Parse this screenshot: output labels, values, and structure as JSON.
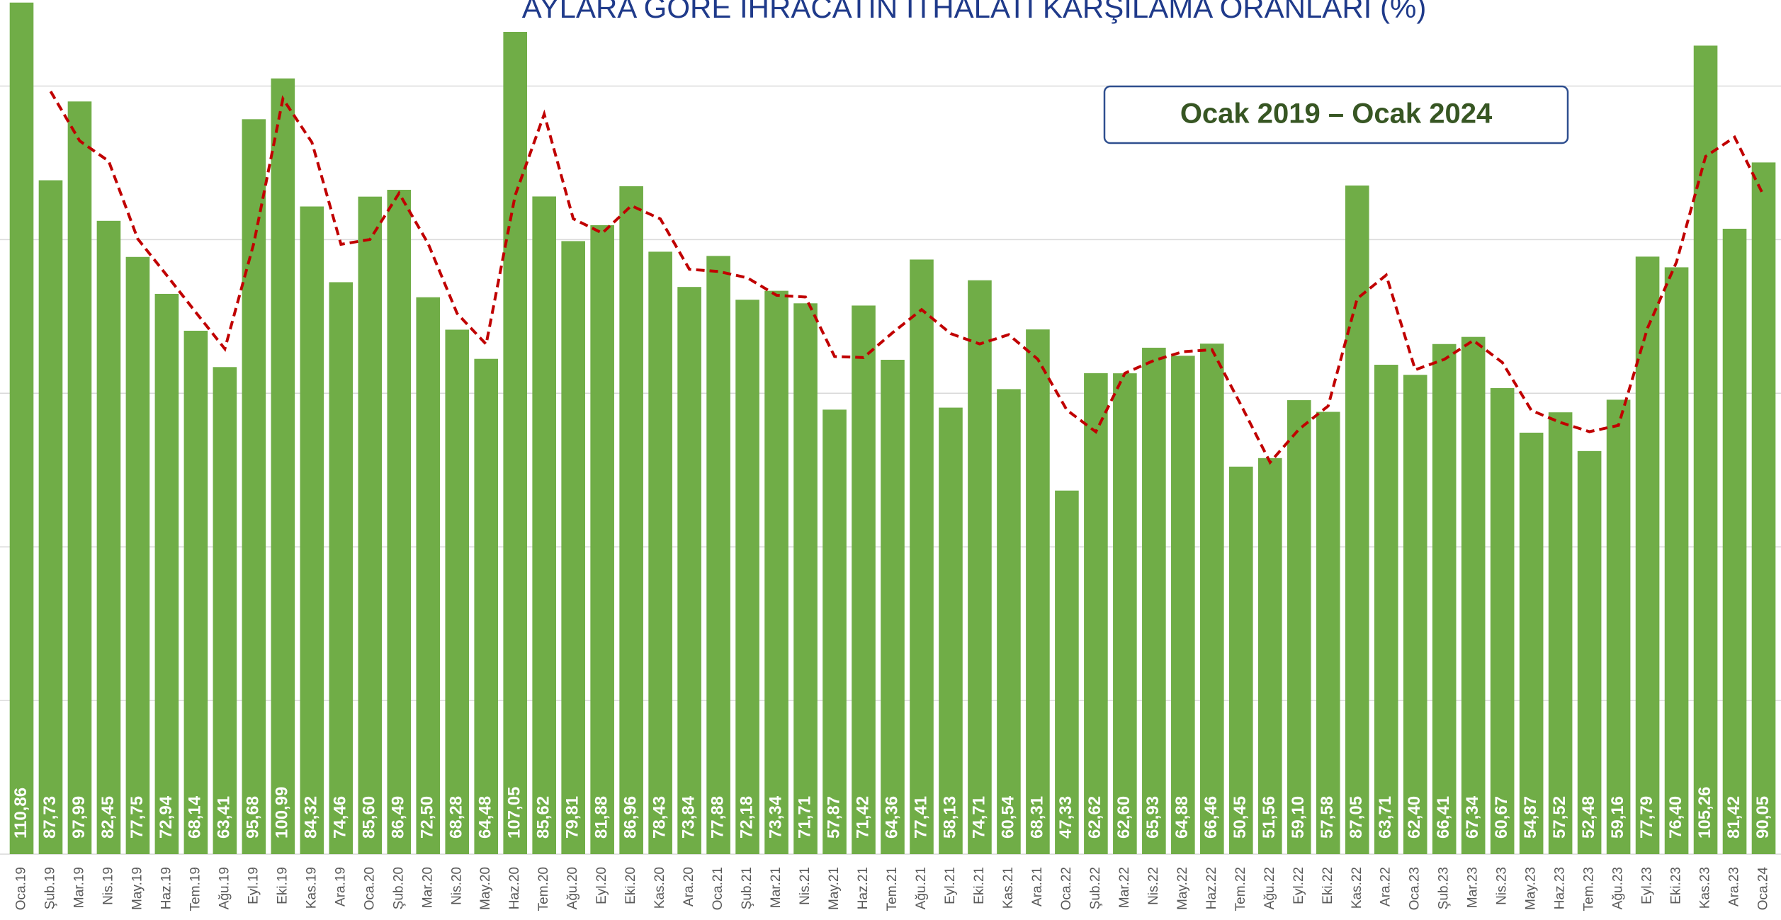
{
  "chart_data": {
    "type": "bar",
    "title": "AYLARA GÖRE İHRACATIN İTHALATI KARŞILAMA ORANLARI (%)",
    "annotation": "Ocak 2019 – Ocak 2024",
    "categories": [
      "Oca.19",
      "Şub.19",
      "Mar.19",
      "Nis.19",
      "May.19",
      "Haz.19",
      "Tem.19",
      "Ağu.19",
      "Eyl.19",
      "Eki.19",
      "Kas.19",
      "Ara.19",
      "Oca.20",
      "Şub.20",
      "Mar.20",
      "Nis.20",
      "May.20",
      "Haz.20",
      "Tem.20",
      "Ağu.20",
      "Eyl.20",
      "Eki.20",
      "Kas.20",
      "Ara.20",
      "Oca.21",
      "Şub.21",
      "Mar.21",
      "Nis.21",
      "May.21",
      "Haz.21",
      "Tem.21",
      "Ağu.21",
      "Eyl.21",
      "Eki.21",
      "Kas.21",
      "Ara.21",
      "Oca.22",
      "Şub.22",
      "Mar.22",
      "Nis.22",
      "May.22",
      "Haz.22",
      "Tem.22",
      "Ağu.22",
      "Eyl.22",
      "Eki.22",
      "Kas.22",
      "Ara.22",
      "Oca.23",
      "Şub.23",
      "Mar.23",
      "Nis.23",
      "May.23",
      "Haz.23",
      "Tem.23",
      "Ağu.23",
      "Eyl.23",
      "Eki.23",
      "Kas.23",
      "Ara.23",
      "Oca.24"
    ],
    "values": [
      110.86,
      87.73,
      97.99,
      82.45,
      77.75,
      72.94,
      68.14,
      63.41,
      95.68,
      100.99,
      84.32,
      74.46,
      85.6,
      86.49,
      72.5,
      68.28,
      64.48,
      107.05,
      85.62,
      79.81,
      81.88,
      86.96,
      78.43,
      73.84,
      77.88,
      72.18,
      73.34,
      71.71,
      57.87,
      71.42,
      64.36,
      77.41,
      58.13,
      74.71,
      60.54,
      68.31,
      47.33,
      62.62,
      62.6,
      65.93,
      64.88,
      66.46,
      50.45,
      51.56,
      59.1,
      57.58,
      87.05,
      63.71,
      62.4,
      66.41,
      67.34,
      60.67,
      54.87,
      57.52,
      52.48,
      59.16,
      77.79,
      76.4,
      105.26,
      81.42,
      90.05
    ],
    "value_labels": [
      "110,86",
      "87,73",
      "97,99",
      "82,45",
      "77,75",
      "72,94",
      "68,14",
      "63,41",
      "95,68",
      "100,99",
      "84,32",
      "74,46",
      "85,60",
      "86,49",
      "72,50",
      "68,28",
      "64,48",
      "107,05",
      "85,62",
      "79,81",
      "81,88",
      "86,96",
      "78,43",
      "73,84",
      "77,88",
      "72,18",
      "73,34",
      "71,71",
      "57,87",
      "71,42",
      "64,36",
      "77,41",
      "58,13",
      "74,71",
      "60,54",
      "68,31",
      "47,33",
      "62,62",
      "62,60",
      "65,93",
      "64,88",
      "66,46",
      "50,45",
      "51,56",
      "59,10",
      "57,58",
      "87,05",
      "63,71",
      "62,40",
      "66,41",
      "67,34",
      "60,67",
      "54,87",
      "57,52",
      "52,48",
      "59,16",
      "77,79",
      "76,40",
      "105,26",
      "81,42",
      "90,05"
    ],
    "color": "#70ad47",
    "trend": {
      "color": "#c00000",
      "dashed": true,
      "values": [
        null,
        99.3,
        92.86,
        90.22,
        80.1,
        75.35,
        70.54,
        65.78,
        79.55,
        98.34,
        92.66,
        79.39,
        80.03,
        86.05,
        79.5,
        70.39,
        66.38,
        85.77,
        96.34,
        82.72,
        80.85,
        84.42,
        82.7,
        76.14,
        75.86,
        75.03,
        72.76,
        72.53,
        64.79,
        64.65,
        67.89,
        70.89,
        67.77,
        66.42,
        67.63,
        64.43,
        57.82,
        54.98,
        62.61,
        64.27,
        65.41,
        65.67,
        58.46,
        51.01,
        55.33,
        58.34,
        72.32,
        75.38,
        63.06,
        64.41,
        66.88,
        64.01,
        57.77,
        56.2,
        55.0,
        55.82,
        68.48,
        77.1,
        90.83,
        93.34,
        85.74
      ]
    },
    "ylim": [
      0,
      111.2
    ],
    "yticks": [
      0,
      20,
      40,
      60,
      80,
      100
    ],
    "grid": true
  }
}
